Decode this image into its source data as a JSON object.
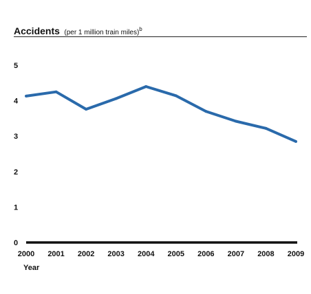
{
  "chart_data": {
    "type": "line",
    "title": "Accidents",
    "subtitle": "(per 1 million train miles)",
    "subtitle_superscript": "b",
    "xlabel": "Year",
    "ylabel": "",
    "x": [
      "2000",
      "2001",
      "2002",
      "2003",
      "2004",
      "2005",
      "2006",
      "2007",
      "2008",
      "2009"
    ],
    "y_ticks": [
      "0",
      "1",
      "2",
      "3",
      "4",
      "5"
    ],
    "ylim": [
      0,
      5
    ],
    "series": [
      {
        "values": [
          4.13,
          4.25,
          3.76,
          4.06,
          4.4,
          4.14,
          3.7,
          3.42,
          3.22,
          2.85
        ],
        "color": "#2a6aab"
      }
    ],
    "grid": false,
    "legend": "none"
  }
}
